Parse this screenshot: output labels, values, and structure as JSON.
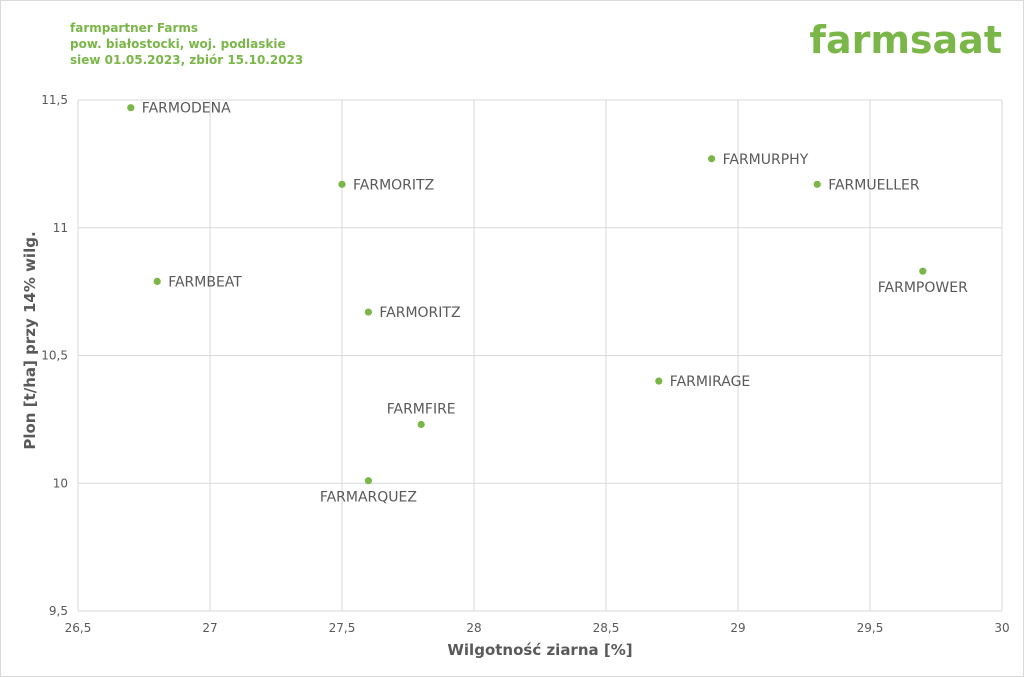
{
  "header": {
    "line1": "farmpartner Farms",
    "line2": "pow. białostocki, woj. podlaskie",
    "line3": "siew 01.05.2023, zbiór 15.10.2023"
  },
  "logo": "farmsaat",
  "colors": {
    "accent": "#7ab648",
    "grid": "#d9d9d9",
    "text": "#595959"
  },
  "chart_data": {
    "type": "scatter",
    "xlabel": "Wilgotność ziarna [%]",
    "ylabel": "Plon [t/ha] przy 14% wilg.",
    "xlim": [
      26.5,
      30
    ],
    "ylim": [
      9.5,
      11.5
    ],
    "x_ticks": [
      26.5,
      27,
      27.5,
      28,
      28.5,
      29,
      29.5,
      30
    ],
    "y_ticks": [
      9.5,
      10,
      10.5,
      11,
      11.5
    ],
    "x_tick_labels": [
      "26,5",
      "27",
      "27,5",
      "28",
      "28,5",
      "29",
      "29,5",
      "30"
    ],
    "y_tick_labels": [
      "9,5",
      "10",
      "10,5",
      "11",
      "11,5"
    ],
    "grid": true,
    "points": [
      {
        "label": "FARMODENA",
        "x": 26.7,
        "y": 11.47,
        "label_pos": "right"
      },
      {
        "label": "FARMORITZ",
        "x": 27.5,
        "y": 11.17,
        "label_pos": "right"
      },
      {
        "label": "FARMURPHY",
        "x": 28.9,
        "y": 11.27,
        "label_pos": "right"
      },
      {
        "label": "FARMUELLER",
        "x": 29.3,
        "y": 11.17,
        "label_pos": "right"
      },
      {
        "label": "FARMBEAT",
        "x": 26.8,
        "y": 10.79,
        "label_pos": "right"
      },
      {
        "label": "FARMPOWER",
        "x": 29.7,
        "y": 10.83,
        "label_pos": "below"
      },
      {
        "label": "FARMORITZ",
        "x": 27.6,
        "y": 10.67,
        "label_pos": "right"
      },
      {
        "label": "FARMIRAGE",
        "x": 28.7,
        "y": 10.4,
        "label_pos": "right"
      },
      {
        "label": "FARMFIRE",
        "x": 27.8,
        "y": 10.23,
        "label_pos": "above"
      },
      {
        "label": "FARMARQUEZ",
        "x": 27.6,
        "y": 10.01,
        "label_pos": "below"
      }
    ]
  }
}
